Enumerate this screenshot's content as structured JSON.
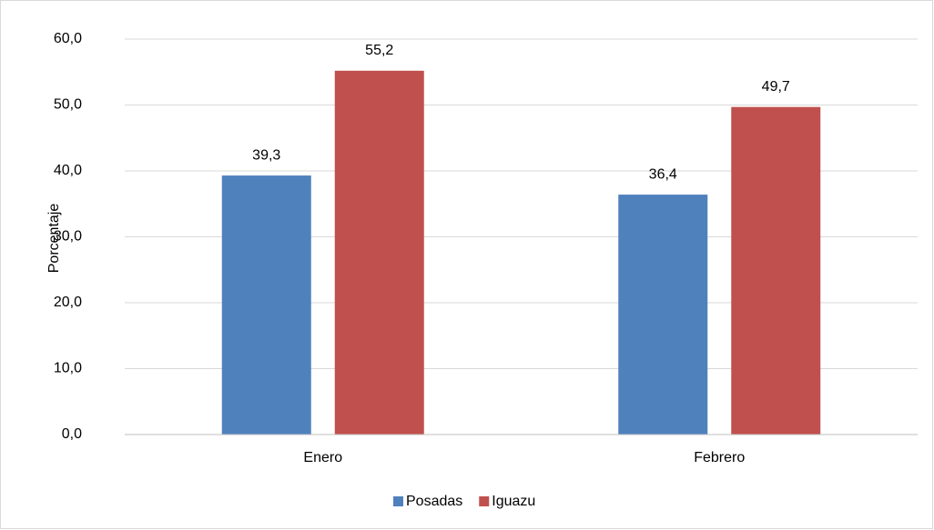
{
  "chart_data": {
    "type": "bar",
    "y_label": "Porcentaje",
    "categories": [
      "Enero",
      "Febrero"
    ],
    "series": [
      {
        "name": "Posadas",
        "color": "#4f81bd",
        "values": [
          39.3,
          36.4
        ],
        "value_labels": [
          "39,3",
          "36,4"
        ]
      },
      {
        "name": "Iguazu",
        "color": "#c0504d",
        "values": [
          55.2,
          49.7
        ],
        "value_labels": [
          "55,2",
          "49,7"
        ]
      }
    ],
    "ylim": [
      0,
      60
    ],
    "yticks": [
      {
        "value": 0,
        "label": "0,0"
      },
      {
        "value": 10,
        "label": "10,0"
      },
      {
        "value": 20,
        "label": "20,0"
      },
      {
        "value": 30,
        "label": "30,0"
      },
      {
        "value": 40,
        "label": "40,0"
      },
      {
        "value": 50,
        "label": "50,0"
      },
      {
        "value": 60,
        "label": "60,0"
      }
    ],
    "grid": true,
    "legend": "bottom"
  }
}
